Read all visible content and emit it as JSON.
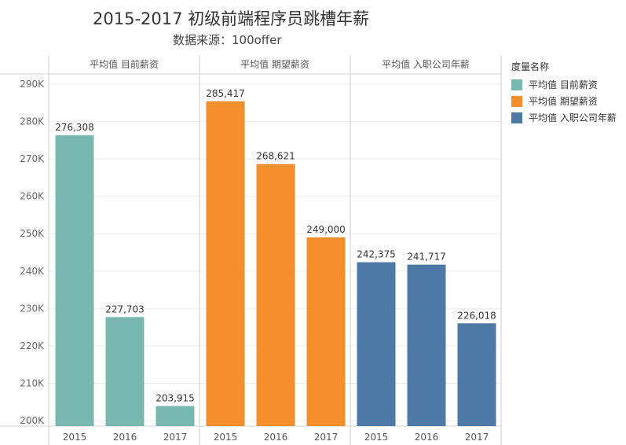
{
  "title": "2015-2017 初级前端程序员跳槽年薪",
  "subtitle": "数据来源：100offer",
  "legend": {
    "title": "度量名称",
    "items": [
      {
        "label": "平均值 目前薪资",
        "color": "#79b8b1"
      },
      {
        "label": "平均值 期望薪资",
        "color": "#f28e2c"
      },
      {
        "label": "平均值 入职公司年薪",
        "color": "#4e79a7"
      }
    ]
  },
  "chart_data": {
    "type": "bar",
    "title": "2015-2017 初级前端程序员跳槽年薪",
    "categories": [
      "2015",
      "2016",
      "2017"
    ],
    "ylim": [
      200000,
      290000
    ],
    "yticks": [
      200000,
      210000,
      220000,
      230000,
      240000,
      250000,
      260000,
      270000,
      280000,
      290000
    ],
    "ytick_labels": [
      "200K",
      "210K",
      "220K",
      "230K",
      "240K",
      "250K",
      "260K",
      "270K",
      "280K",
      "290K"
    ],
    "grid": true,
    "legend_position": "right",
    "series": [
      {
        "name": "平均值 目前薪资",
        "color": "#79b8b1",
        "values": [
          276308,
          227703,
          203915
        ],
        "labels": [
          "276,308",
          "227,703",
          "203,915"
        ]
      },
      {
        "name": "平均值 期望薪资",
        "color": "#f28e2c",
        "values": [
          285417,
          268621,
          249000
        ],
        "labels": [
          "285,417",
          "268,621",
          "249,000"
        ]
      },
      {
        "name": "平均值 入职公司年薪",
        "color": "#4e79a7",
        "values": [
          242375,
          241717,
          226018
        ],
        "labels": [
          "242,375",
          "241,717",
          "226,018"
        ]
      }
    ]
  }
}
